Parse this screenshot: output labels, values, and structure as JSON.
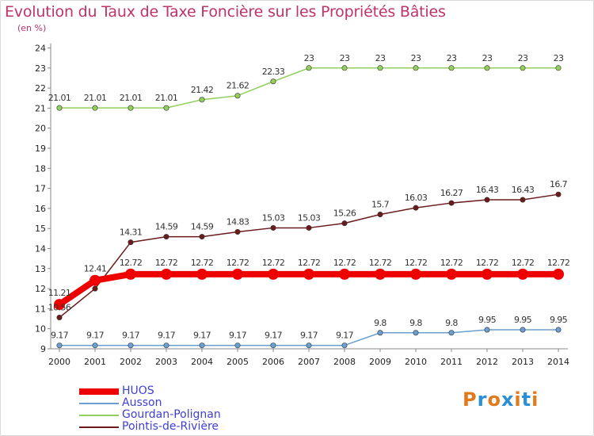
{
  "title": "Evolution du Taux de Taxe Foncière sur les Propriétés Bâties",
  "unit": "(en %)",
  "logo": {
    "text": "Proxiti",
    "colors": [
      "#e07a1a",
      "#2a8fd4",
      "#e07a1a",
      "#2a8fd4",
      "#e07a1a",
      "#2a8fd4",
      "#e07a1a"
    ]
  },
  "chart_data": {
    "type": "line",
    "title": "Evolution du Taux de Taxe Foncière sur les Propriétés Bâties",
    "ylabel": "(en %)",
    "xlabel": "",
    "x": [
      "2000",
      "2001",
      "2002",
      "2003",
      "2004",
      "2005",
      "2006",
      "2007",
      "2008",
      "2009",
      "2010",
      "2011",
      "2012",
      "2013",
      "2014"
    ],
    "ylim": [
      9,
      24
    ],
    "yticks": [
      "9",
      "10",
      "11",
      "12",
      "13",
      "14",
      "15",
      "16",
      "17",
      "18",
      "19",
      "20",
      "21",
      "22",
      "23",
      "24"
    ],
    "grid": false,
    "legend_position": "bottom-left",
    "series": [
      {
        "name": "HUOS",
        "color": "#ee0000",
        "bold": true,
        "values": [
          11.21,
          12.41,
          12.72,
          12.72,
          12.72,
          12.72,
          12.72,
          12.72,
          12.72,
          12.72,
          12.72,
          12.72,
          12.72,
          12.72,
          12.72
        ],
        "labels": [
          "11.21",
          "12.41",
          "12.72",
          "12.72",
          "12.72",
          "12.72",
          "12.72",
          "12.72",
          "12.72",
          "12.72",
          "12.72",
          "12.72",
          "12.72",
          "12.72",
          "12.72"
        ]
      },
      {
        "name": "Ausson",
        "color": "#6a9fcf",
        "bold": false,
        "values": [
          9.17,
          9.17,
          9.17,
          9.17,
          9.17,
          9.17,
          9.17,
          9.17,
          9.17,
          9.8,
          9.8,
          9.8,
          9.95,
          9.95,
          9.95
        ],
        "labels": [
          "9.17",
          "9.17",
          "9.17",
          "9.17",
          "9.17",
          "9.17",
          "9.17",
          "9.17",
          "9.17",
          "9.8",
          "9.8",
          "9.8",
          "9.95",
          "9.95",
          "9.95"
        ]
      },
      {
        "name": "Gourdan-Polignan",
        "color": "#92cf5c",
        "bold": false,
        "values": [
          21.01,
          21.01,
          21.01,
          21.01,
          21.42,
          21.62,
          22.33,
          23,
          23,
          23,
          23,
          23,
          23,
          23,
          23
        ],
        "labels": [
          "21.01",
          "21.01",
          "21.01",
          "21.01",
          "21.42",
          "21.62",
          "22.33",
          "23",
          "23",
          "23",
          "23",
          "23",
          "23",
          "23",
          "23"
        ]
      },
      {
        "name": "Pointis-de-Rivière",
        "color": "#6b1b1b",
        "bold": false,
        "values": [
          10.56,
          12.0,
          14.31,
          14.59,
          14.59,
          14.83,
          15.03,
          15.03,
          15.26,
          15.7,
          16.03,
          16.27,
          16.43,
          16.43,
          16.7
        ],
        "labels": [
          "10.56",
          "",
          "14.31",
          "14.59",
          "14.59",
          "14.83",
          "15.03",
          "15.03",
          "15.26",
          "15.7",
          "16.03",
          "16.27",
          "16.43",
          "16.43",
          "16.7"
        ]
      }
    ]
  }
}
